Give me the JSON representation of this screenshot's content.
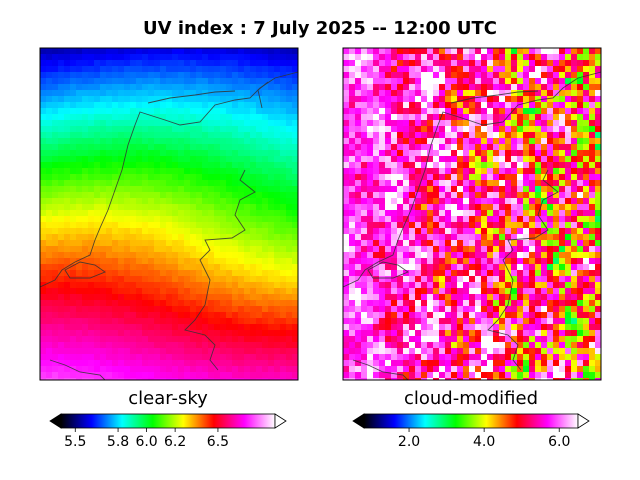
{
  "chart_data": {
    "type": "heatmap",
    "title": "UV index :  7 July 2025  --  12:00 UTC",
    "panels": [
      {
        "label": "clear-sky",
        "colorbar": {
          "range": [
            5.4,
            6.9
          ],
          "ticks": [
            5.5,
            5.8,
            6.0,
            6.2,
            6.5
          ],
          "tick_labels": [
            "5.5",
            "5.8",
            "6.0",
            "6.2",
            "6.5"
          ],
          "extend": "both"
        },
        "field_description": "latitudinal gradient: about 5.4 in the north rising to about 6.8 in the south"
      },
      {
        "label": "cloud-modified",
        "colorbar": {
          "range": [
            0.8,
            6.5
          ],
          "ticks": [
            2.0,
            4.0,
            6.0
          ],
          "tick_labels": [
            "2.0",
            "4.0",
            "6.0"
          ],
          "extend": "both"
        },
        "field_description": "spatially noisy field: highest (about 6) over the west and coast, broken low values (1 to 3) inland east"
      }
    ],
    "colormap": [
      "#000000",
      "#00007f",
      "#0000ff",
      "#0080ff",
      "#00ffff",
      "#00ff80",
      "#00ff00",
      "#80ff00",
      "#ffff00",
      "#ff8000",
      "#ff0000",
      "#ff0080",
      "#ff00ff",
      "#ff80ff",
      "#ffffff"
    ]
  }
}
